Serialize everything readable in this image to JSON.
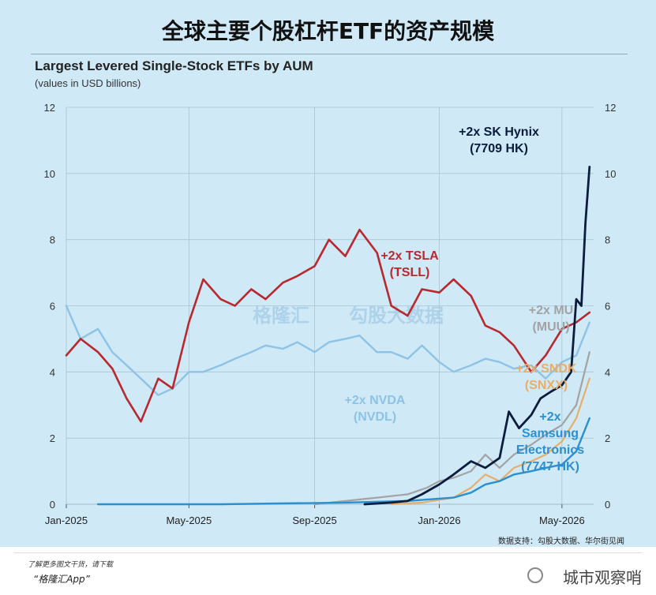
{
  "headline": "全球主要个股杠杆ETF的资产规模",
  "source": "数据支持：勾股大数据、华尔街见闻",
  "footer": {
    "line1": "了解更多图文干货，请下载",
    "line2": "“格隆汇App”",
    "watermark": "城市观察哨"
  },
  "ghost_watermark": {
    "left": "格隆汇",
    "right": "勾股大数据"
  },
  "colors": {
    "tsla": "#b8282e",
    "nvda": "#8ec3e6",
    "hynix": "#0c1c3c",
    "mu": "#a3a3a3",
    "sndk": "#e8ae6a",
    "samsung": "#2c8fd0",
    "grid": "#a9c5d4"
  },
  "chart_data": {
    "type": "line",
    "title": "Largest Levered Single-Stock ETFs by AUM",
    "subtitle": "(values in USD billions)",
    "x_ticks": [
      "Jan-2025",
      "May-2025",
      "Sep-2025",
      "Jan-2026",
      "May-2026"
    ],
    "x_range": [
      "2025-01-01",
      "2026-06-01"
    ],
    "ylim": [
      0,
      12
    ],
    "y_ticks": [
      0,
      2,
      4,
      6,
      8,
      10,
      12
    ],
    "series": [
      {
        "id": "tsla",
        "name": "+2x TSLA (TSLL)",
        "label_lines": [
          "+2x TSLA",
          "(TSLL)"
        ],
        "x": [
          "2025-01-01",
          "2025-01-15",
          "2025-02-01",
          "2025-02-15",
          "2025-03-01",
          "2025-03-15",
          "2025-04-01",
          "2025-04-15",
          "2025-05-01",
          "2025-05-15",
          "2025-06-01",
          "2025-06-15",
          "2025-07-01",
          "2025-07-15",
          "2025-08-01",
          "2025-08-15",
          "2025-09-01",
          "2025-09-15",
          "2025-10-01",
          "2025-10-15",
          "2025-11-01",
          "2025-11-15",
          "2025-12-01",
          "2025-12-15",
          "2026-01-01",
          "2026-01-15",
          "2026-02-01",
          "2026-02-15",
          "2026-03-01",
          "2026-03-15",
          "2026-04-01",
          "2026-04-15",
          "2026-05-01",
          "2026-05-15",
          "2026-05-28"
        ],
        "y": [
          4.5,
          5.0,
          4.6,
          4.1,
          3.2,
          2.5,
          3.8,
          3.5,
          5.5,
          6.8,
          6.2,
          6.0,
          6.5,
          6.2,
          6.7,
          6.9,
          7.2,
          8.0,
          7.5,
          8.3,
          7.6,
          6.0,
          5.7,
          6.5,
          6.4,
          6.8,
          6.3,
          5.4,
          5.2,
          4.8,
          4.0,
          4.5,
          5.3,
          5.5,
          5.8
        ]
      },
      {
        "id": "nvda",
        "name": "+2x NVDA (NVDL)",
        "label_lines": [
          "+2x NVDA",
          "(NVDL)"
        ],
        "x": [
          "2025-01-01",
          "2025-01-15",
          "2025-02-01",
          "2025-02-15",
          "2025-03-01",
          "2025-03-15",
          "2025-04-01",
          "2025-04-15",
          "2025-05-01",
          "2025-05-15",
          "2025-06-01",
          "2025-06-15",
          "2025-07-01",
          "2025-07-15",
          "2025-08-01",
          "2025-08-15",
          "2025-09-01",
          "2025-09-15",
          "2025-10-01",
          "2025-10-15",
          "2025-11-01",
          "2025-11-15",
          "2025-12-01",
          "2025-12-15",
          "2026-01-01",
          "2026-01-15",
          "2026-02-01",
          "2026-02-15",
          "2026-03-01",
          "2026-03-15",
          "2026-04-01",
          "2026-04-15",
          "2026-05-01",
          "2026-05-15",
          "2026-05-28"
        ],
        "y": [
          6.0,
          5.0,
          5.3,
          4.6,
          4.2,
          3.8,
          3.3,
          3.5,
          4.0,
          4.0,
          4.2,
          4.4,
          4.6,
          4.8,
          4.7,
          4.9,
          4.6,
          4.9,
          5.0,
          5.1,
          4.6,
          4.6,
          4.4,
          4.8,
          4.3,
          4.0,
          4.2,
          4.4,
          4.3,
          4.1,
          4.2,
          3.8,
          4.3,
          4.5,
          5.5
        ]
      },
      {
        "id": "hynix",
        "name": "+2x SK Hynix (7709 HK)",
        "label_lines": [
          "+2x SK Hynix",
          "(7709 HK)"
        ],
        "x": [
          "2025-10-20",
          "2025-11-15",
          "2025-12-01",
          "2025-12-15",
          "2026-01-01",
          "2026-01-15",
          "2026-02-01",
          "2026-02-15",
          "2026-03-01",
          "2026-03-10",
          "2026-03-20",
          "2026-04-01",
          "2026-04-10",
          "2026-04-20",
          "2026-05-01",
          "2026-05-10",
          "2026-05-15",
          "2026-05-20",
          "2026-05-24",
          "2026-05-28"
        ],
        "y": [
          0.0,
          0.05,
          0.1,
          0.3,
          0.6,
          0.9,
          1.3,
          1.1,
          1.4,
          2.8,
          2.3,
          2.7,
          3.2,
          3.4,
          3.6,
          4.0,
          6.2,
          6.0,
          8.5,
          10.2
        ]
      },
      {
        "id": "mu",
        "name": "+2x MU (MUU)",
        "label_lines": [
          "+2x MU",
          "(MUU)"
        ],
        "x": [
          "2025-09-01",
          "2025-10-01",
          "2025-11-01",
          "2025-12-01",
          "2025-12-20",
          "2026-01-01",
          "2026-01-15",
          "2026-02-01",
          "2026-02-15",
          "2026-03-01",
          "2026-03-15",
          "2026-04-01",
          "2026-04-15",
          "2026-05-01",
          "2026-05-15",
          "2026-05-28"
        ],
        "y": [
          0.0,
          0.1,
          0.2,
          0.3,
          0.5,
          0.7,
          0.8,
          1.0,
          1.5,
          1.1,
          1.5,
          1.8,
          2.1,
          2.4,
          3.0,
          4.6
        ]
      },
      {
        "id": "sndk",
        "name": "+2x SNDK (SNXX)",
        "label_lines": [
          "+2x SNDK",
          "(SNXX)"
        ],
        "x": [
          "2025-11-15",
          "2025-12-15",
          "2026-01-15",
          "2026-02-01",
          "2026-02-15",
          "2026-03-01",
          "2026-03-15",
          "2026-04-01",
          "2026-04-15",
          "2026-05-01",
          "2026-05-15",
          "2026-05-28"
        ],
        "y": [
          0.0,
          0.05,
          0.2,
          0.5,
          0.9,
          0.7,
          1.1,
          1.3,
          1.5,
          1.9,
          2.6,
          3.8
        ]
      },
      {
        "id": "samsung",
        "name": "+2x Samsung Electronics (7747 HK)",
        "label_lines": [
          "+2x",
          "Samsung",
          "Electronics",
          "(7747 HK)"
        ],
        "x": [
          "2025-02-01",
          "2025-06-01",
          "2025-10-01",
          "2025-12-01",
          "2026-01-15",
          "2026-02-01",
          "2026-02-15",
          "2026-03-01",
          "2026-03-15",
          "2026-04-01",
          "2026-04-15",
          "2026-05-01",
          "2026-05-15",
          "2026-05-28"
        ],
        "y": [
          0.0,
          0.0,
          0.05,
          0.1,
          0.2,
          0.35,
          0.6,
          0.7,
          0.9,
          1.0,
          1.1,
          1.2,
          1.6,
          2.6
        ]
      }
    ]
  }
}
